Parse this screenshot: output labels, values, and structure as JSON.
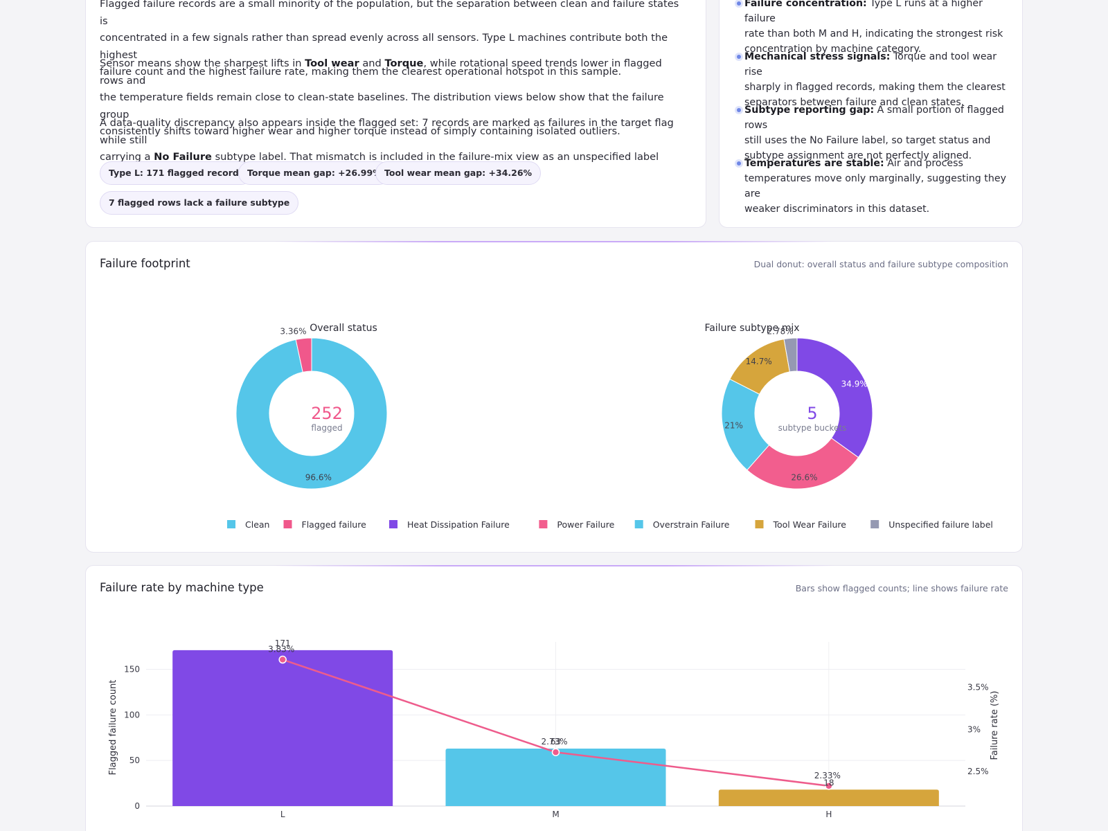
{
  "summary": {
    "para1_line1": "Flagged failure records are a small minority of the population, but the separation between clean and failure states is",
    "para1_line2": "concentrated in a few signals rather than spread evenly across all sensors. Type L machines contribute both the highest",
    "para1_line3": "failure count and the highest failure rate, making them the clearest operational hotspot in this sample.",
    "para2_pre": "Sensor means show the sharpest lifts in ",
    "para2_b1": "Tool wear",
    "para2_mid": " and ",
    "para2_b2": "Torque",
    "para2_post1": ", while rotational speed trends lower in flagged rows and",
    "para2_line2": "the temperature fields remain close to clean-state baselines. The distribution views below show that the failure group",
    "para2_line3": "consistently shifts toward higher wear and higher torque instead of simply containing isolated outliers.",
    "para3_line1": "A data-quality discrepancy also appears inside the flagged set: 7 records are marked as failures in the target flag while still",
    "para3_pre": "carrying a ",
    "para3_b": "No Failure",
    "para3_post": " subtype label. That mismatch is included in the failure-mix view as an unspecified label bucket.",
    "chips": [
      "Type L: 171 flagged records",
      "Torque mean gap: +26.99%",
      "Tool wear mean gap: +34.26%",
      "7 flagged rows lack a failure subtype"
    ]
  },
  "insights": [
    {
      "title": "Failure concentration:",
      "l1": " Type L runs at a higher failure",
      "l2": "rate than both M and H, indicating the strongest risk",
      "l3": "concentration by machine category."
    },
    {
      "title": "Mechanical stress signals:",
      "l1": " Torque and tool wear rise",
      "l2": "sharply in flagged records, making them the clearest",
      "l3": "separators between failure and clean states."
    },
    {
      "title": "Subtype reporting gap:",
      "l1": " A small portion of flagged rows",
      "l2": "still uses the No Failure label, so target status and",
      "l3": "subtype assignment are not perfectly aligned."
    },
    {
      "title": "Temperatures are stable:",
      "l1": " Air and process",
      "l2": "temperatures move only marginally, suggesting they are",
      "l3": "weaker discriminators in this dataset."
    }
  ],
  "footprint": {
    "title": "Failure footprint",
    "subtitle": "Dual donut: overall status and failure subtype composition"
  },
  "rate_card": {
    "title": "Failure rate by machine type",
    "subtitle": "Bars show flagged counts; line shows failure rate"
  },
  "colors": {
    "clean": "#55c6e9",
    "flagged": "#f0588b",
    "heat": "#8049e6",
    "power": "#f25e8e",
    "overstrain": "#55c6e9",
    "toolwear": "#d6a53c",
    "unspecified": "#9599b2",
    "bar_L": "#8049e6",
    "bar_M": "#55c6e9",
    "bar_H": "#d6a53c",
    "line": "#ee5c8c"
  },
  "chart_data": [
    {
      "type": "pie",
      "title": "Overall status",
      "center_value": "252",
      "center_label": "flagged",
      "labels": [
        "Clean",
        "Flagged failure"
      ],
      "values": [
        96.6,
        3.36
      ],
      "value_labels": [
        "96.6%",
        "3.36%"
      ]
    },
    {
      "type": "pie",
      "title": "Failure subtype mix",
      "center_value": "5",
      "center_label": "subtype buckets",
      "labels": [
        "Heat Dissipation Failure",
        "Power Failure",
        "Overstrain Failure",
        "Tool Wear Failure",
        "Unspecified failure label"
      ],
      "values": [
        34.9,
        26.6,
        21,
        14.7,
        2.78
      ],
      "value_labels": [
        "34.9%",
        "26.6%",
        "21%",
        "14.7%",
        "2.78%"
      ]
    },
    {
      "type": "bar",
      "categories": [
        "L",
        "M",
        "H"
      ],
      "series": [
        {
          "name": "Flagged failure count",
          "values": [
            171,
            63,
            18
          ],
          "value_labels": [
            "171",
            "63",
            "18"
          ]
        },
        {
          "name": "Failure rate (%)",
          "values": [
            3.83,
            2.73,
            2.33
          ],
          "value_labels": [
            "3.83%",
            "2.73%",
            "2.33%"
          ]
        }
      ],
      "ylabel": "Flagged failure count",
      "y2label": "Failure rate (%)",
      "yticks": [
        "0",
        "50",
        "100",
        "150"
      ],
      "y2ticks": [
        "2.5%",
        "3%",
        "3.5%"
      ],
      "ylim": [
        0,
        180
      ],
      "y2lim": [
        2.09,
        4.04
      ]
    }
  ],
  "legend": [
    {
      "label": "Clean",
      "color": "#55c6e9"
    },
    {
      "label": "Flagged failure",
      "color": "#f0588b"
    },
    {
      "label": "Heat Dissipation Failure",
      "color": "#8049e6"
    },
    {
      "label": "Power Failure",
      "color": "#f25e8e"
    },
    {
      "label": "Overstrain Failure",
      "color": "#55c6e9"
    },
    {
      "label": "Tool Wear Failure",
      "color": "#d6a53c"
    },
    {
      "label": "Unspecified failure label",
      "color": "#9599b2"
    }
  ]
}
